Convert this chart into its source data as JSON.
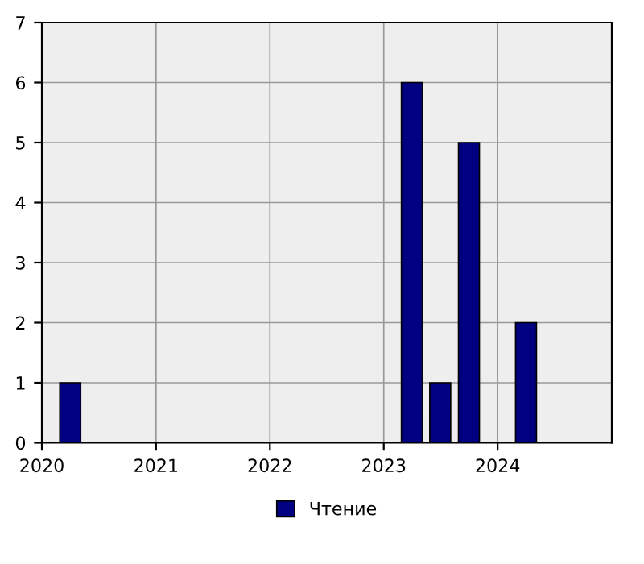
{
  "chart_data": {
    "type": "bar",
    "x": [
      "2020-04",
      "2023-04",
      "2023-07",
      "2023-10",
      "2024-04"
    ],
    "series": [
      {
        "name": "Чтение",
        "color": "#000080",
        "values": [
          1,
          6,
          1,
          5,
          2
        ]
      }
    ],
    "xlim": [
      "2020",
      "2025"
    ],
    "xticks": [
      "2020",
      "2021",
      "2022",
      "2023",
      "2024"
    ],
    "ylim": [
      0,
      7
    ],
    "yticks": [
      0,
      1,
      2,
      3,
      4,
      5,
      6,
      7
    ],
    "grid": true,
    "legend": "bottom"
  }
}
